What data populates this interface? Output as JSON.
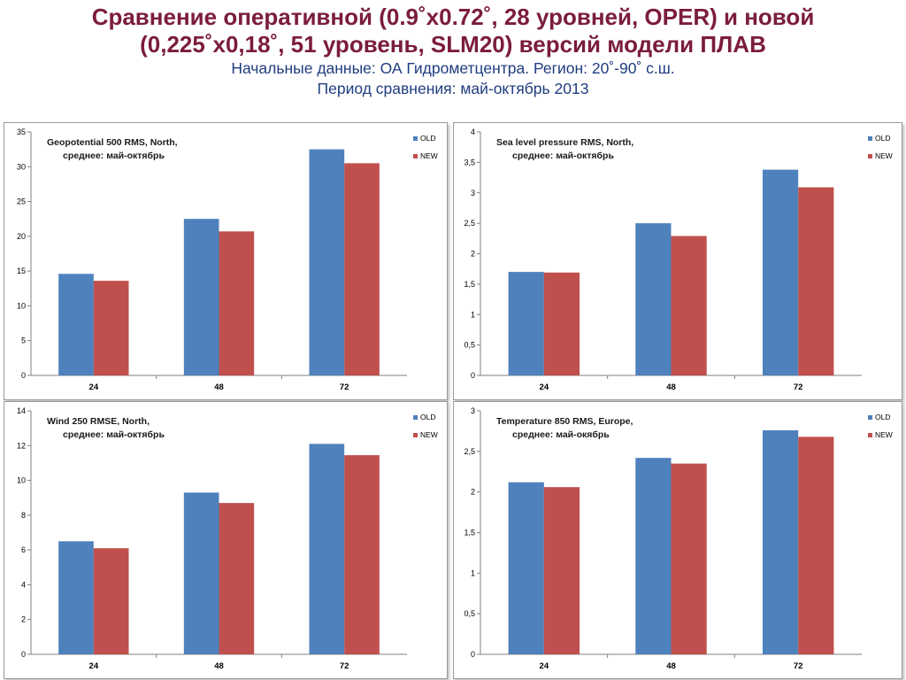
{
  "header": {
    "title_line1": "Сравнение оперативной (0.9˚x0.72˚, 28 уровней, OPER) и новой",
    "title_line2": "(0,225˚x0,18˚, 51 уровень, SLM20) версий модели ПЛАВ",
    "subtitle_line1": "Начальные данные: ОА Гидрометцентра. Регион: 20˚-90˚ с.ш.",
    "subtitle_line2": "Период сравнения: май-октябрь 2013"
  },
  "colors": {
    "old": "#4f81bd",
    "new": "#c0504d",
    "title": "#7b1c3d",
    "subtitle": "#1f3d80"
  },
  "chart_data": [
    {
      "type": "bar",
      "title_line1": "Geopotential 500 RMS, North,",
      "title_line2": "среднее: май-октябрь",
      "categories": [
        "24",
        "48",
        "72"
      ],
      "series": [
        {
          "name": "OLD",
          "values": [
            14.6,
            22.5,
            32.5
          ]
        },
        {
          "name": "NEW",
          "values": [
            13.6,
            20.7,
            30.5
          ]
        }
      ],
      "ylim": [
        0,
        35
      ],
      "yticks": [
        "0",
        "5",
        "10",
        "15",
        "20",
        "25",
        "30",
        "35"
      ],
      "legend": "top-right",
      "grid": false
    },
    {
      "type": "bar",
      "title_line1": "Sea level pressure RMS, North,",
      "title_line2": "среднее: май-октябрь",
      "categories": [
        "24",
        "48",
        "72"
      ],
      "series": [
        {
          "name": "OLD",
          "values": [
            1.7,
            2.5,
            3.38
          ]
        },
        {
          "name": "NEW",
          "values": [
            1.69,
            2.29,
            3.09
          ]
        }
      ],
      "ylim": [
        0,
        4
      ],
      "yticks": [
        "0",
        "0,5",
        "1",
        "1,5",
        "2",
        "2,5",
        "3",
        "3,5",
        "4"
      ],
      "legend": "top-right",
      "grid": false
    },
    {
      "type": "bar",
      "title_line1": "Wind 250 RMSE, North,",
      "title_line2": "среднее: май-октябрь",
      "categories": [
        "24",
        "48",
        "72"
      ],
      "series": [
        {
          "name": "OLD",
          "values": [
            6.5,
            9.3,
            12.1
          ]
        },
        {
          "name": "NEW",
          "values": [
            6.1,
            8.7,
            11.45
          ]
        }
      ],
      "ylim": [
        0,
        14
      ],
      "yticks": [
        "0",
        "2",
        "4",
        "6",
        "8",
        "10",
        "12",
        "14"
      ],
      "legend": "top-right",
      "grid": false
    },
    {
      "type": "bar",
      "title_line1": "Temperature 850 RMS, Europe,",
      "title_line2": "среднее: май-окябрь",
      "categories": [
        "24",
        "48",
        "72"
      ],
      "series": [
        {
          "name": "OLD",
          "values": [
            2.12,
            2.42,
            2.76
          ]
        },
        {
          "name": "NEW",
          "values": [
            2.06,
            2.35,
            2.68
          ]
        }
      ],
      "ylim": [
        0,
        3
      ],
      "yticks": [
        "0",
        "0,5",
        "1",
        "1,5",
        "2",
        "2,5",
        "3"
      ],
      "legend": "top-right",
      "grid": false
    }
  ]
}
